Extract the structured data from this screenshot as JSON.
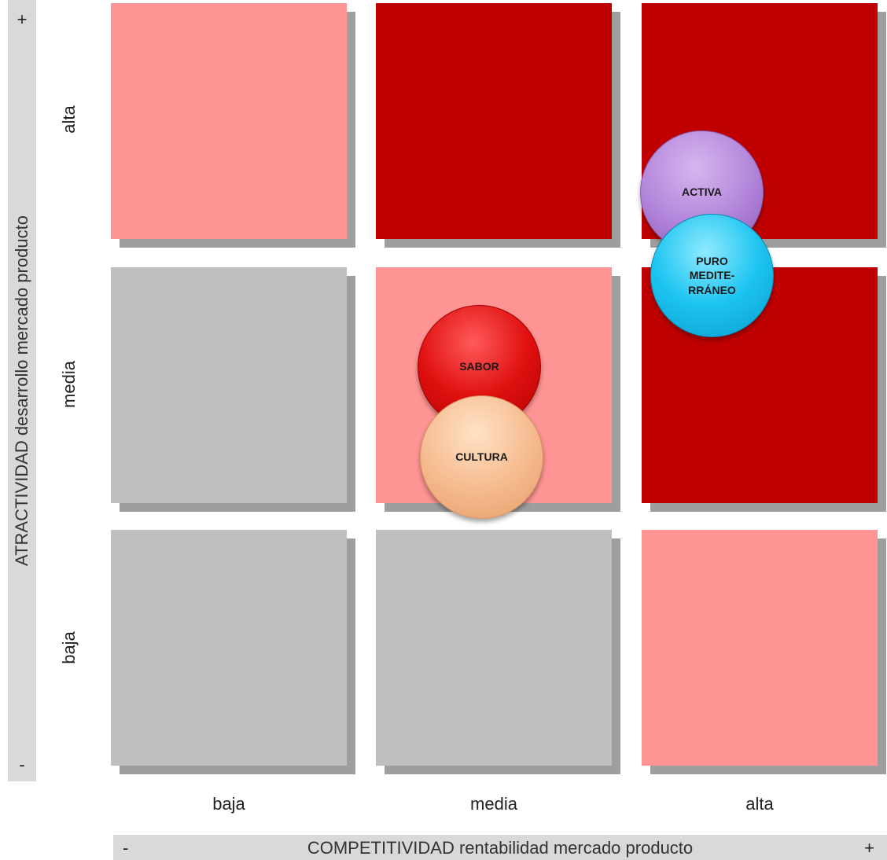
{
  "y_axis": {
    "title": "ATRACTIVIDAD   desarrollo mercado producto",
    "plus": "+",
    "minus": "-",
    "levels": [
      "alta",
      "media",
      "baja"
    ]
  },
  "x_axis": {
    "title": "COMPETITIVIDAD   rentabilidad mercado producto",
    "plus": "+",
    "minus": "-",
    "levels": [
      "baja",
      "media",
      "alta"
    ]
  },
  "grid_colors": {
    "pink": "#ff9494",
    "red": "#c00000",
    "gray": "#bfbfbf"
  },
  "cells": [
    {
      "row": "alta",
      "col": "baja",
      "color": "pink"
    },
    {
      "row": "alta",
      "col": "media",
      "color": "red"
    },
    {
      "row": "alta",
      "col": "alta",
      "color": "red"
    },
    {
      "row": "media",
      "col": "baja",
      "color": "gray"
    },
    {
      "row": "media",
      "col": "media",
      "color": "pink"
    },
    {
      "row": "media",
      "col": "alta",
      "color": "red"
    },
    {
      "row": "baja",
      "col": "baja",
      "color": "gray"
    },
    {
      "row": "baja",
      "col": "media",
      "color": "gray"
    },
    {
      "row": "baja",
      "col": "alta",
      "color": "pink"
    }
  ],
  "bubbles": [
    {
      "label": "ACTIVA",
      "color": "#b083d9"
    },
    {
      "label": "PURO\nMEDITE-\nRRÁNEO",
      "color": "#1cc4f0"
    },
    {
      "label": "SABOR",
      "color": "#e01010"
    },
    {
      "label": "CULTURA",
      "color": "#f5b98c"
    }
  ]
}
